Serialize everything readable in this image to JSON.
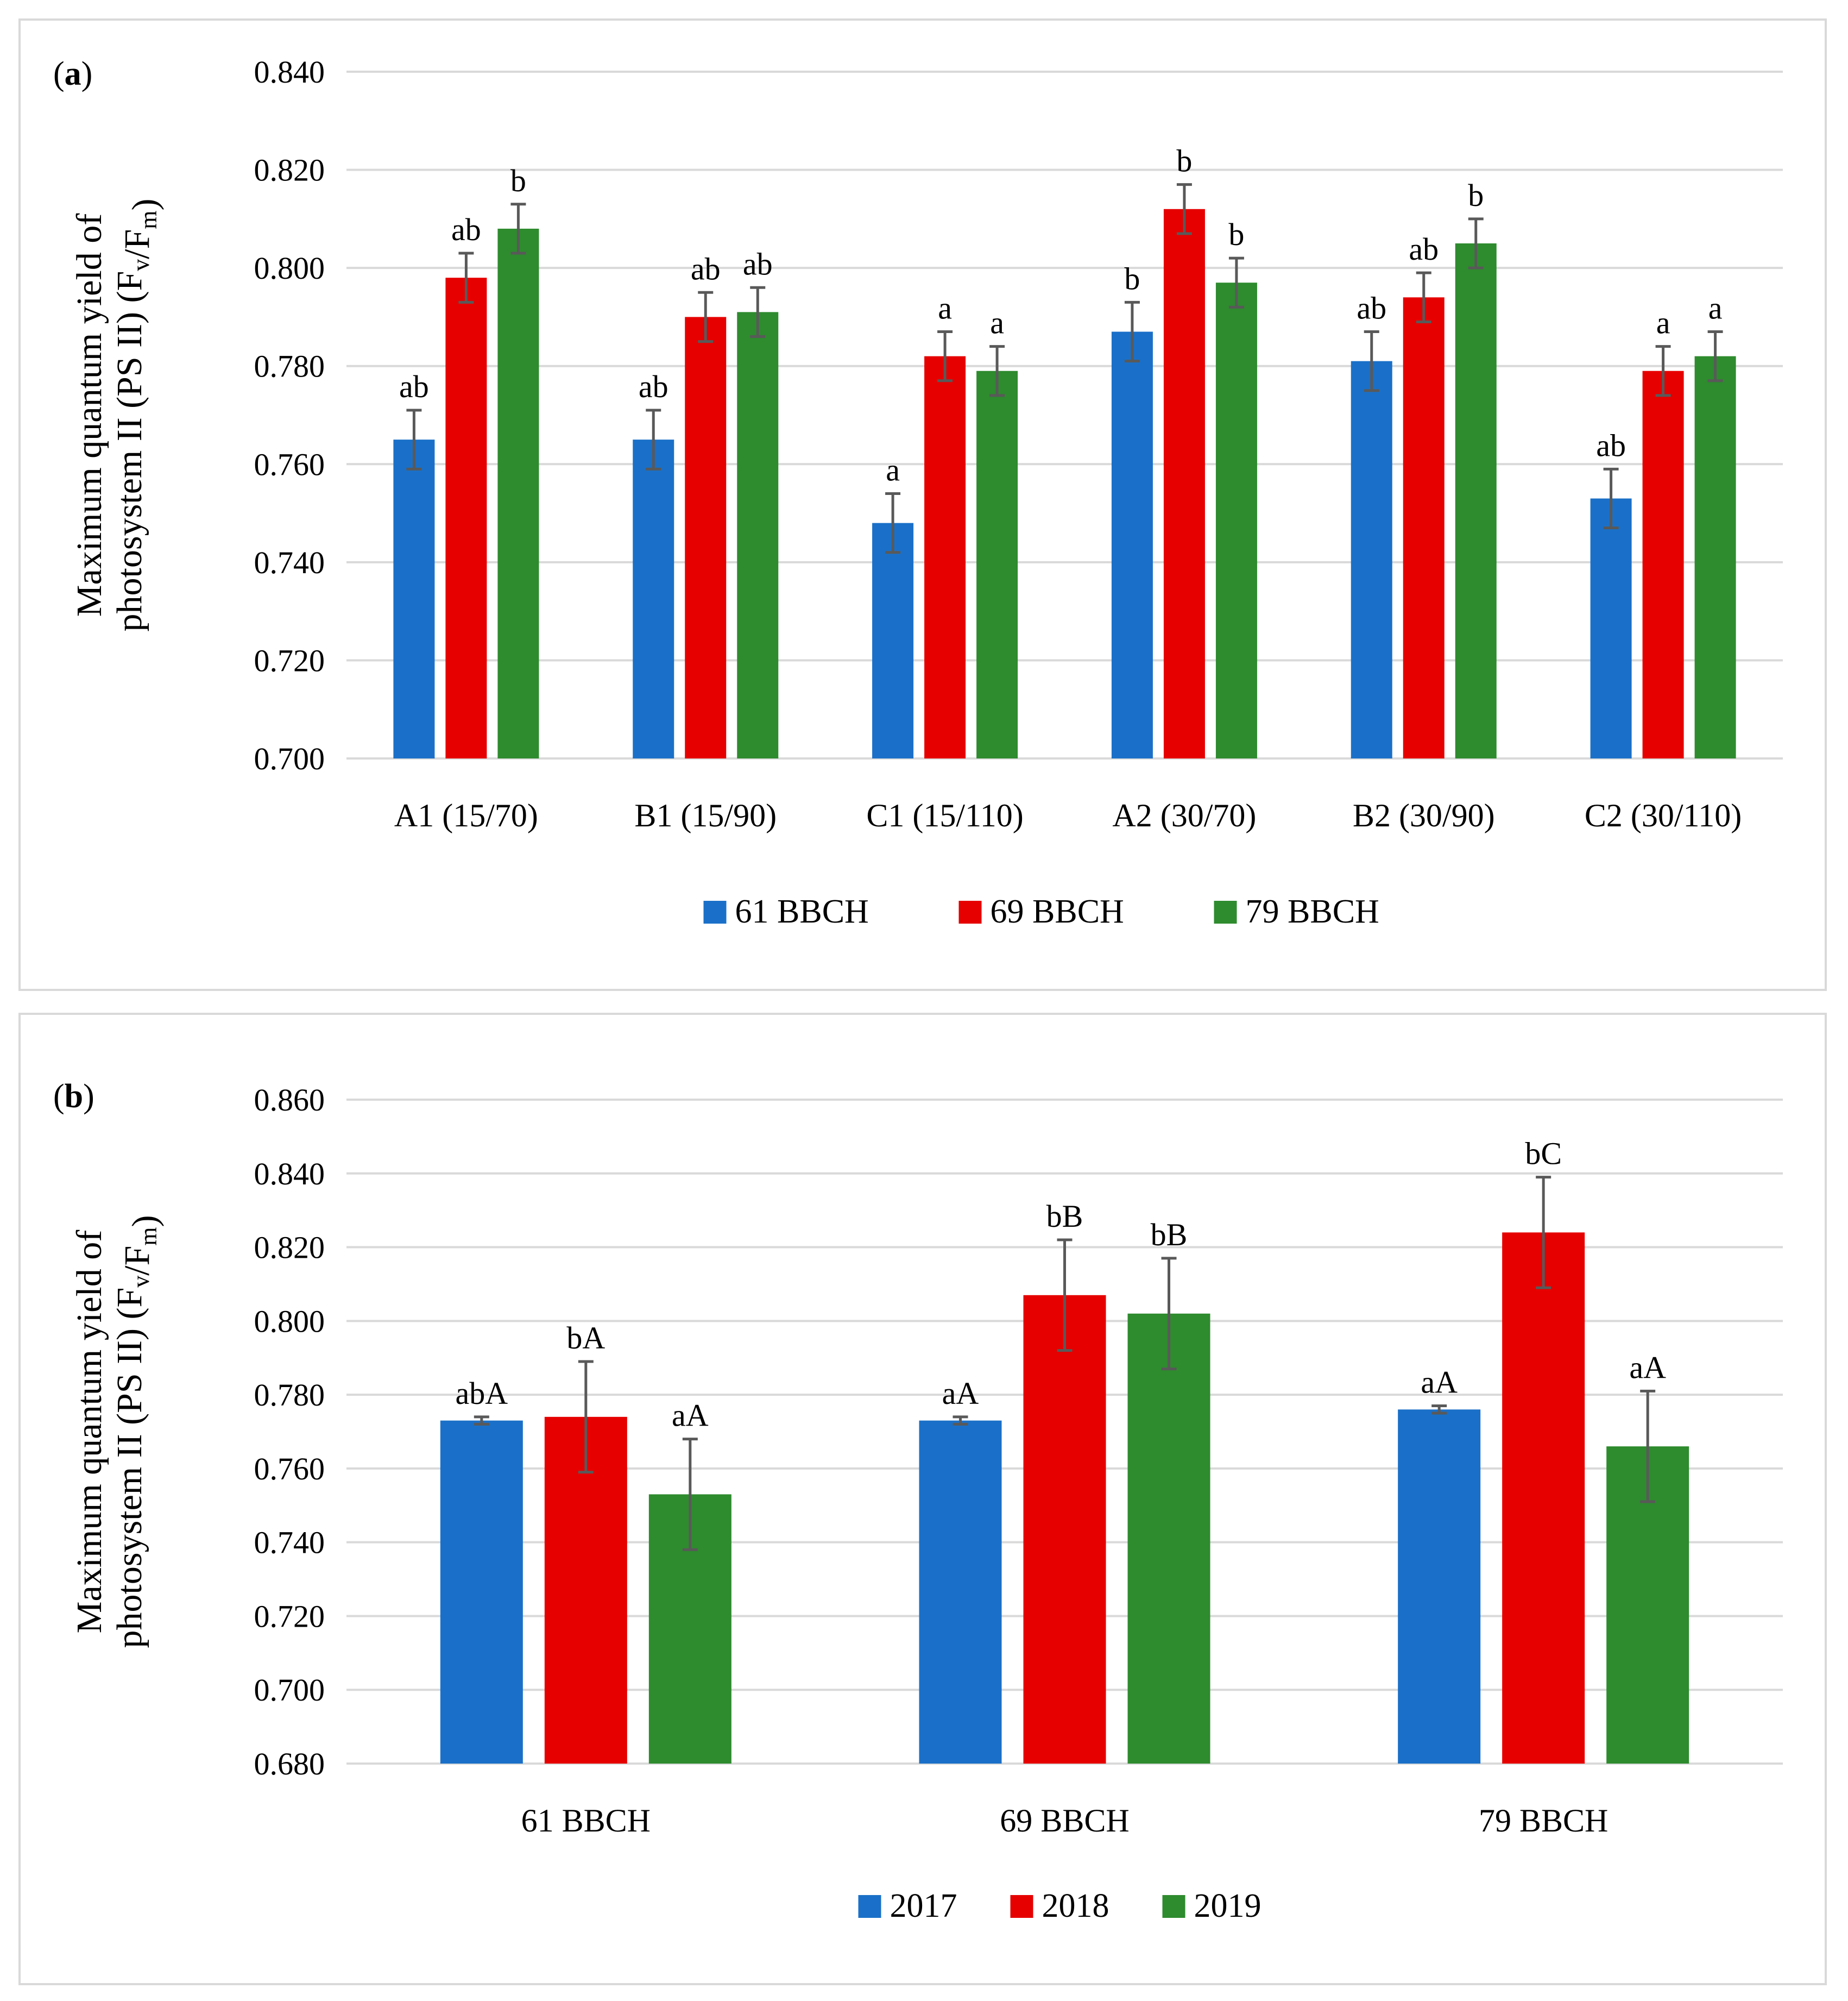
{
  "colors": {
    "c2017": "#1a70c8",
    "c2018": "#e60000",
    "c2019": "#2e8b2e",
    "grid": "#d9d9d9",
    "error": "#595959"
  },
  "chart_data": [
    {
      "type": "bar",
      "panel_label": "a",
      "ylabel_line1": "Maximum quantum yield of",
      "ylabel_line2_prefix": "photosystem II (PS II) (F",
      "ylabel_sub1": "v",
      "ylabel_mid": "/F",
      "ylabel_sub2": "m",
      "ylabel_suffix": ")",
      "ylim": [
        0.7,
        0.84
      ],
      "yticks": [
        "0.700",
        "0.720",
        "0.740",
        "0.760",
        "0.780",
        "0.800",
        "0.820",
        "0.840"
      ],
      "categories": [
        "A1 (15/70)",
        "B1 (15/90)",
        "C1 (15/110)",
        "A2 (30/70)",
        "B2 (30/90)",
        "C2 (30/110)"
      ],
      "legend_position": "bottom",
      "series": [
        {
          "name": "61 BBCH",
          "color": "#1a70c8",
          "values": [
            0.765,
            0.765,
            0.748,
            0.787,
            0.781,
            0.753
          ],
          "errors": [
            0.006,
            0.006,
            0.006,
            0.006,
            0.006,
            0.006
          ],
          "labels": [
            "ab",
            "ab",
            "a",
            "b",
            "ab",
            "ab"
          ]
        },
        {
          "name": "69 BBCH",
          "color": "#e60000",
          "values": [
            0.798,
            0.79,
            0.782,
            0.812,
            0.794,
            0.779
          ],
          "errors": [
            0.005,
            0.005,
            0.005,
            0.005,
            0.005,
            0.005
          ],
          "labels": [
            "ab",
            "ab",
            "a",
            "b",
            "ab",
            "a"
          ]
        },
        {
          "name": "79 BBCH",
          "color": "#2e8b2e",
          "values": [
            0.808,
            0.791,
            0.779,
            0.797,
            0.805,
            0.782
          ],
          "errors": [
            0.005,
            0.005,
            0.005,
            0.005,
            0.005,
            0.005
          ],
          "labels": [
            "b",
            "ab",
            "a",
            "b",
            "b",
            "a"
          ]
        }
      ]
    },
    {
      "type": "bar",
      "panel_label": "b",
      "ylabel_line1": "Maximum quantum yield of",
      "ylabel_line2_prefix": "photosystem II (PS II) (F",
      "ylabel_sub1": "v",
      "ylabel_mid": "/F",
      "ylabel_sub2": "m",
      "ylabel_suffix": ")",
      "ylim": [
        0.68,
        0.86
      ],
      "yticks": [
        "0.680",
        "0.700",
        "0.720",
        "0.740",
        "0.760",
        "0.780",
        "0.800",
        "0.820",
        "0.840",
        "0.860"
      ],
      "categories": [
        "61 BBCH",
        "69 BBCH",
        "79 BBCH"
      ],
      "legend_position": "bottom",
      "series": [
        {
          "name": "2017",
          "color": "#1a70c8",
          "values": [
            0.773,
            0.773,
            0.776
          ],
          "errors": [
            0.001,
            0.001,
            0.001
          ],
          "labels": [
            "abA",
            "aA",
            "aA"
          ]
        },
        {
          "name": "2018",
          "color": "#e60000",
          "values": [
            0.774,
            0.807,
            0.824
          ],
          "errors": [
            0.015,
            0.015,
            0.015
          ],
          "labels": [
            "bA",
            "bB",
            "bC"
          ]
        },
        {
          "name": "2019",
          "color": "#2e8b2e",
          "values": [
            0.753,
            0.802,
            0.766
          ],
          "errors": [
            0.015,
            0.015,
            0.015
          ],
          "labels": [
            "aA",
            "bB",
            "aA"
          ]
        }
      ]
    }
  ]
}
